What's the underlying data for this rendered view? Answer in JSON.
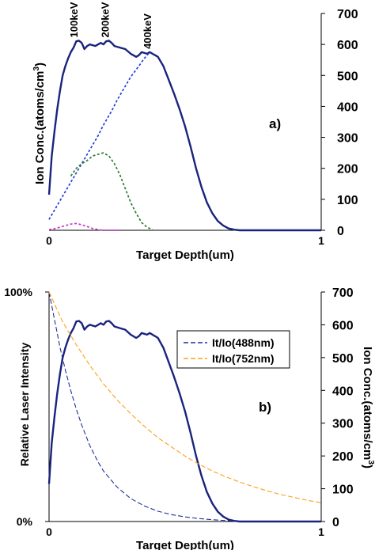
{
  "colors": {
    "total": "#1a237e",
    "e100": "#2e7d32",
    "e200": "#cc33cc",
    "e400": "#1f3fd6",
    "t488": "#1f2f9a",
    "t752": "#ff9f1a"
  },
  "chart_data": [
    {
      "type": "line",
      "panel_label": "a)",
      "xlabel": "Target Depth(um)",
      "ylabel": "Ion Conc.(atoms/cm",
      "ylabel_sup": "3",
      "ylabel_tail": ")",
      "xlim": [
        0,
        1
      ],
      "ylim": [
        0,
        700
      ],
      "x_ticks": [
        "0",
        "1"
      ],
      "y_ticks": [
        "0",
        "100",
        "200",
        "300",
        "400",
        "500",
        "600",
        "700"
      ],
      "annotations": [
        {
          "text": "100keV",
          "x": 0.105,
          "y": 612
        },
        {
          "text": "200keV",
          "x": 0.22,
          "y": 612
        },
        {
          "text": "400keV",
          "x": 0.375,
          "y": 575
        }
      ],
      "series": [
        {
          "key": "total",
          "style": "solid",
          "x": [
            0.0,
            0.01,
            0.02,
            0.03,
            0.04,
            0.05,
            0.06,
            0.07,
            0.08,
            0.09,
            0.1,
            0.11,
            0.12,
            0.13,
            0.14,
            0.15,
            0.17,
            0.19,
            0.2,
            0.21,
            0.22,
            0.23,
            0.24,
            0.26,
            0.28,
            0.3,
            0.32,
            0.33,
            0.34,
            0.36,
            0.37,
            0.38,
            0.39,
            0.4,
            0.42,
            0.44,
            0.46,
            0.48,
            0.5,
            0.52,
            0.54,
            0.56,
            0.58,
            0.6,
            0.62,
            0.64,
            0.66,
            0.68,
            0.7,
            0.72,
            0.75,
            0.8,
            0.9,
            1.0
          ],
          "y": [
            115,
            240,
            320,
            390,
            450,
            500,
            530,
            555,
            575,
            590,
            610,
            612,
            605,
            585,
            595,
            600,
            595,
            605,
            600,
            610,
            612,
            605,
            595,
            590,
            585,
            570,
            560,
            565,
            575,
            570,
            575,
            570,
            565,
            560,
            530,
            485,
            440,
            390,
            335,
            270,
            200,
            140,
            90,
            55,
            30,
            15,
            6,
            2,
            0,
            0,
            0,
            0,
            0,
            0
          ]
        },
        {
          "key": "e400",
          "style": "dotted",
          "x": [
            0.0,
            0.03,
            0.05,
            0.08,
            0.1,
            0.13,
            0.15,
            0.18,
            0.2,
            0.23,
            0.25,
            0.28,
            0.3,
            0.33,
            0.35,
            0.37
          ],
          "y": [
            35,
            80,
            110,
            155,
            185,
            230,
            260,
            305,
            340,
            385,
            420,
            465,
            495,
            530,
            555,
            575
          ]
        },
        {
          "key": "e100",
          "style": "dotted",
          "x": [
            0.08,
            0.1,
            0.12,
            0.14,
            0.16,
            0.18,
            0.2,
            0.22,
            0.24,
            0.26,
            0.28,
            0.3,
            0.32,
            0.34,
            0.36,
            0.38
          ],
          "y": [
            175,
            200,
            215,
            225,
            240,
            245,
            250,
            240,
            215,
            180,
            135,
            90,
            55,
            25,
            10,
            2
          ]
        },
        {
          "key": "e200",
          "style": "dotted",
          "x": [
            0.0,
            0.02,
            0.04,
            0.06,
            0.08,
            0.1,
            0.12,
            0.14,
            0.16,
            0.18,
            0.2,
            0.22,
            0.24,
            0.26
          ],
          "y": [
            2,
            5,
            10,
            15,
            20,
            22,
            18,
            12,
            6,
            2,
            0,
            0,
            0,
            0
          ]
        }
      ]
    },
    {
      "type": "line",
      "panel_label": "b)",
      "xlabel": "Target Depth(um)",
      "ylabel_left": "Relative Laser Intensity",
      "ylabel_right": "Ion Conc.(atoms/cm",
      "ylabel_right_sup": "3",
      "ylabel_right_tail": ")",
      "xlim": [
        0,
        1
      ],
      "ylim_left": [
        0,
        1
      ],
      "ylim_right": [
        0,
        700
      ],
      "x_ticks": [
        "0",
        "1"
      ],
      "y_ticks_left": [
        "0%",
        "100%"
      ],
      "y_ticks_right": [
        "0",
        "100",
        "200",
        "300",
        "400",
        "500",
        "600",
        "700"
      ],
      "legend": {
        "position": "right",
        "entries": [
          "It/Io(488nm)",
          "It/Io(752nm)"
        ]
      },
      "series": [
        {
          "key": "total",
          "style": "solid",
          "axis": "right",
          "x": [
            0.0,
            0.01,
            0.02,
            0.03,
            0.04,
            0.05,
            0.06,
            0.07,
            0.08,
            0.09,
            0.1,
            0.11,
            0.12,
            0.13,
            0.14,
            0.15,
            0.17,
            0.19,
            0.2,
            0.21,
            0.22,
            0.23,
            0.24,
            0.26,
            0.28,
            0.3,
            0.32,
            0.33,
            0.34,
            0.36,
            0.37,
            0.38,
            0.39,
            0.4,
            0.42,
            0.44,
            0.46,
            0.48,
            0.5,
            0.52,
            0.54,
            0.56,
            0.58,
            0.6,
            0.62,
            0.64,
            0.66,
            0.68,
            0.7,
            0.72,
            0.75,
            0.8,
            0.9,
            1.0
          ],
          "y": [
            115,
            240,
            320,
            390,
            450,
            500,
            530,
            555,
            575,
            590,
            610,
            612,
            605,
            585,
            595,
            600,
            595,
            605,
            600,
            610,
            612,
            605,
            595,
            590,
            585,
            570,
            560,
            565,
            575,
            570,
            575,
            570,
            565,
            560,
            530,
            485,
            440,
            390,
            335,
            270,
            200,
            140,
            90,
            55,
            30,
            15,
            6,
            2,
            0,
            0,
            0,
            0,
            0,
            0
          ]
        },
        {
          "key": "t488",
          "style": "dashed",
          "axis": "left",
          "name": "It/Io(488nm)",
          "x": [
            0.0,
            0.02,
            0.04,
            0.06,
            0.08,
            0.1,
            0.12,
            0.15,
            0.18,
            0.2,
            0.25,
            0.3,
            0.35,
            0.4,
            0.45,
            0.5,
            0.55,
            0.6,
            0.65,
            0.7
          ],
          "y": [
            1.0,
            0.88,
            0.76,
            0.66,
            0.57,
            0.49,
            0.42,
            0.33,
            0.26,
            0.22,
            0.15,
            0.1,
            0.068,
            0.045,
            0.03,
            0.02,
            0.013,
            0.008,
            0.004,
            0.0
          ]
        },
        {
          "key": "t752",
          "style": "dashed",
          "axis": "left",
          "name": "It/Io(752nm)",
          "x": [
            0.0,
            0.05,
            0.1,
            0.15,
            0.2,
            0.25,
            0.3,
            0.35,
            0.4,
            0.45,
            0.5,
            0.55,
            0.6,
            0.65,
            0.7,
            0.75,
            0.8,
            0.85,
            0.9,
            0.95,
            1.0
          ],
          "y": [
            1.0,
            0.87,
            0.77,
            0.68,
            0.6,
            0.53,
            0.47,
            0.415,
            0.365,
            0.325,
            0.285,
            0.25,
            0.22,
            0.195,
            0.172,
            0.152,
            0.134,
            0.118,
            0.105,
            0.092,
            0.082
          ]
        }
      ]
    }
  ]
}
